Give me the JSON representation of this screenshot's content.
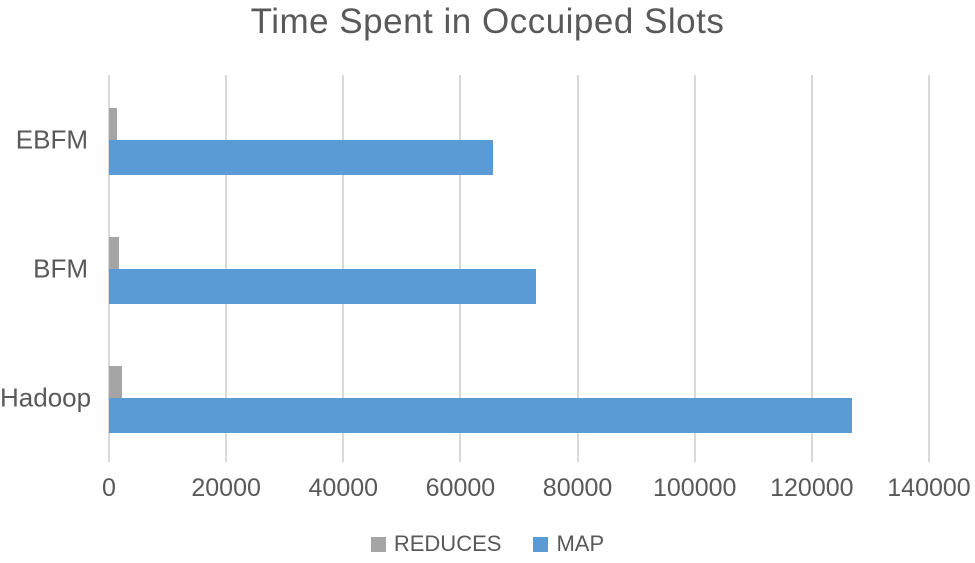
{
  "title": "Time Spent in Occuiped Slots",
  "colors": {
    "map_blue": "#5B9BD5",
    "reduces_gray": "#A5A5A5",
    "gridline": "#D9D9D9",
    "text": "#595959",
    "background": "#FFFFFF"
  },
  "chart_data": {
    "type": "bar",
    "orientation": "horizontal",
    "title": "Time Spent in Occuiped Slots",
    "categories": [
      "EBFM",
      "BFM",
      "Hadoop"
    ],
    "series": [
      {
        "name": "REDUCES",
        "color": "#A5A5A5",
        "values": [
          1400,
          1700,
          2300
        ]
      },
      {
        "name": "MAP",
        "color": "#5B9BD5",
        "values": [
          65500,
          72900,
          126800
        ]
      }
    ],
    "xlim": [
      0,
      140000
    ],
    "x_ticks": [
      0,
      20000,
      40000,
      60000,
      80000,
      100000,
      120000,
      140000
    ],
    "x_tick_labels": [
      "0",
      "20000",
      "40000",
      "60000",
      "80000",
      "100000",
      "120000",
      "140000"
    ],
    "xlabel": "",
    "ylabel": "",
    "grid": "vertical-only",
    "legend_position": "bottom-center",
    "legend": [
      {
        "label": "REDUCES",
        "color": "#A5A5A5"
      },
      {
        "label": "MAP",
        "color": "#5B9BD5"
      }
    ]
  }
}
